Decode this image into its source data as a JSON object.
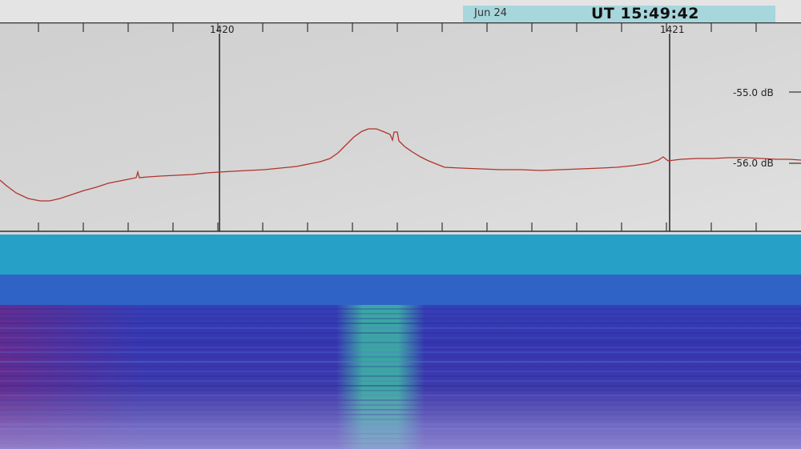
{
  "status": {
    "date": "Jun 24",
    "ut_time": "UT 15:49:42"
  },
  "spectrum": {
    "freq_ticks": [
      "1420",
      "1421"
    ],
    "level_labels": [
      "-55.0 dB",
      "-56.0 dB"
    ],
    "trace_color": "#b0342a",
    "gridline_color": "#222222",
    "peak_note": "bump near center of trace"
  },
  "waterfall": {
    "colors": {
      "top_band": "#27a0c8",
      "body": "#3a3fb8",
      "signal": "#3ec9a0",
      "edge": "#6a2a8a"
    }
  }
}
